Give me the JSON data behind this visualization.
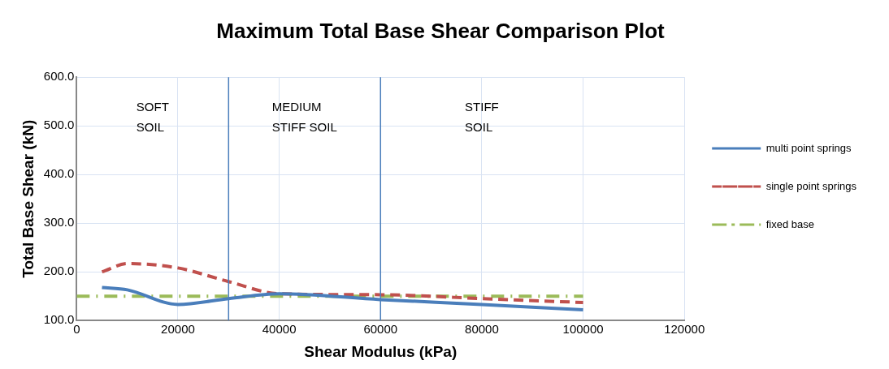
{
  "chart_data": {
    "type": "line",
    "title": "Maximum Total Base Shear Comparison Plot",
    "xlabel": "Shear Modulus (kPa)",
    "ylabel": "Total Base Shear (kN)",
    "series": [
      {
        "name": "multi point springs",
        "color": "#4a7ebb",
        "line_style": "solid",
        "x": [
          5000,
          10000,
          20000,
          30000,
          40000,
          60000,
          80000,
          100000
        ],
        "values": [
          168,
          163,
          133,
          145,
          155,
          143,
          133,
          122
        ]
      },
      {
        "name": "single point springs",
        "color": "#c0504d",
        "line_style": "dashed",
        "x": [
          5000,
          10000,
          20000,
          30000,
          40000,
          60000,
          80000,
          100000
        ],
        "values": [
          200,
          217,
          208,
          180,
          155,
          153,
          145,
          137
        ]
      },
      {
        "name": "fixed base",
        "color": "#9bbb59",
        "line_style": "dashdot",
        "x": [
          0,
          100000
        ],
        "values": [
          150,
          150
        ]
      }
    ],
    "xlim": [
      0,
      120000
    ],
    "xticks": [
      0,
      20000,
      40000,
      60000,
      80000,
      100000,
      120000
    ],
    "ylim": [
      100,
      600
    ],
    "yticks": [
      {
        "value": 100,
        "label": "100.0"
      },
      {
        "value": 200,
        "label": "200.0"
      },
      {
        "value": 300,
        "label": "300.0"
      },
      {
        "value": 400,
        "label": "400.0"
      },
      {
        "value": 500,
        "label": "500.0"
      },
      {
        "value": 600,
        "label": "600.0"
      }
    ],
    "grid": true,
    "legend": "right",
    "marker": "none",
    "ref_lines": [
      {
        "axis": "x",
        "value": 30000,
        "color": "#4a7ebb"
      },
      {
        "axis": "x",
        "value": 60000,
        "color": "#4a7ebb"
      }
    ],
    "annotations": [
      "SOFT\nSOIL",
      "MEDIUM\nSTIFF SOIL",
      "STIFF\nSOIL"
    ]
  }
}
